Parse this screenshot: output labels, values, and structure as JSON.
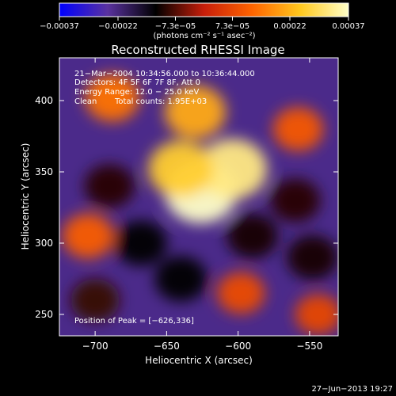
{
  "chart_data": {
    "type": "heatmap",
    "title": "Reconstructed RHESSI Image",
    "xlabel": "Heliocentric X (arcsec)",
    "ylabel": "Heliocentric Y (arcsec)",
    "xlim": [
      -725,
      -530
    ],
    "ylim": [
      235,
      430
    ],
    "x_ticks": [
      -700,
      -650,
      -600,
      -550
    ],
    "x_tick_labels": [
      "−700",
      "−650",
      "−600",
      "−550"
    ],
    "y_ticks": [
      250,
      300,
      350,
      400
    ],
    "y_tick_labels": [
      "250",
      "300",
      "350",
      "400"
    ],
    "colorbar": {
      "range": [
        -0.00037,
        0.00037
      ],
      "ticks": [
        -0.00037,
        -0.00022,
        -7.3e-05,
        7.3e-05,
        0.00022,
        0.00037
      ],
      "tick_labels": [
        "−0.00037",
        "−0.00022",
        "−7.3e−05",
        "7.3e−05",
        "0.00022",
        "0.00037"
      ],
      "units_label": "(photons cm⁻² s⁻¹ asec⁻²)",
      "colors": [
        "#0000ff",
        "#5a32a0",
        "#000000",
        "#c81e0a",
        "#ff6400",
        "#ffc81e",
        "#ffffc8"
      ]
    },
    "annotations": [
      "21−Mar−2004 10:34:56.000 to 10:36:44.000",
      "Detectors: 4F 5F 6F 7F 8F, Att 0",
      "Energy Range: 12.0 − 25.0 keV",
      "Clean",
      "Total counts: 1.95E+03"
    ],
    "peak_label": "Position of Peak = [−626,336]",
    "peak": [
      -626,
      336
    ],
    "sources": [
      {
        "x": -626,
        "y": 336,
        "value": 0.00037
      },
      {
        "x": -604,
        "y": 352,
        "value": 0.00032
      },
      {
        "x": -640,
        "y": 352,
        "value": 0.00026
      },
      {
        "x": -630,
        "y": 392,
        "value": 0.00021
      },
      {
        "x": -688,
        "y": 402,
        "value": 0.00014
      },
      {
        "x": -705,
        "y": 305,
        "value": 0.00011
      },
      {
        "x": -558,
        "y": 380,
        "value": 0.0001
      },
      {
        "x": -598,
        "y": 265,
        "value": 8e-05
      },
      {
        "x": -544,
        "y": 250,
        "value": 7e-05
      },
      {
        "x": -690,
        "y": 340,
        "value": -0.0001
      },
      {
        "x": -668,
        "y": 300,
        "value": -0.00012
      },
      {
        "x": -590,
        "y": 305,
        "value": -0.00011
      },
      {
        "x": -560,
        "y": 330,
        "value": -0.0001
      },
      {
        "x": -700,
        "y": 260,
        "value": -9e-05
      },
      {
        "x": -640,
        "y": 275,
        "value": -0.00012
      },
      {
        "x": -548,
        "y": 290,
        "value": -0.00011
      }
    ]
  },
  "footer": {
    "timestamp": "27−Jun−2013 19:27"
  }
}
